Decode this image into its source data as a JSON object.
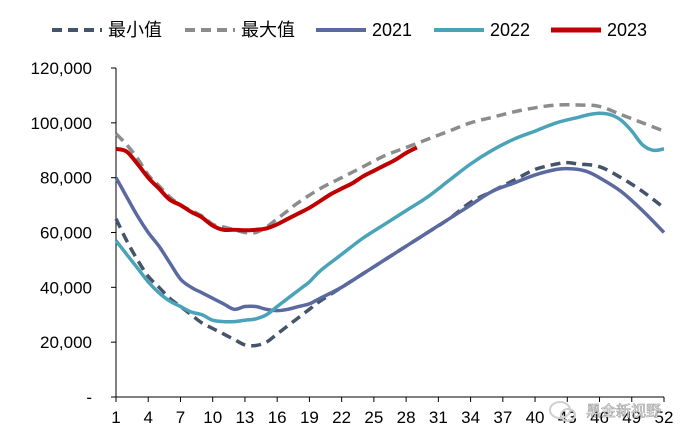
{
  "chart_data": {
    "type": "line",
    "title": "",
    "xlabel": "",
    "ylabel": "",
    "ylim": [
      0,
      120000
    ],
    "xlim": [
      1,
      52
    ],
    "y_ticks": [
      {
        "value": 0,
        "label": "-"
      },
      {
        "value": 20000,
        "label": "20,000"
      },
      {
        "value": 40000,
        "label": "40,000"
      },
      {
        "value": 60000,
        "label": "60,000"
      },
      {
        "value": 80000,
        "label": "80,000"
      },
      {
        "value": 100000,
        "label": "100,000"
      },
      {
        "value": 120000,
        "label": "120,000"
      }
    ],
    "x_ticks": [
      1,
      4,
      7,
      10,
      13,
      16,
      19,
      22,
      25,
      28,
      31,
      34,
      37,
      40,
      43,
      46,
      49,
      52
    ],
    "legend_position": "top",
    "grid": false,
    "series": [
      {
        "name": "最小值",
        "color": "#44546a",
        "dash": "dashed",
        "x": [
          1,
          2,
          3,
          4,
          5,
          6,
          7,
          8,
          9,
          10,
          11,
          12,
          13,
          14,
          15,
          16,
          17,
          18,
          19,
          20,
          22,
          24,
          26,
          28,
          30,
          32,
          34,
          36,
          38,
          40,
          42,
          43,
          44,
          46,
          48,
          50,
          52
        ],
        "values": [
          65000,
          57000,
          50000,
          44000,
          40000,
          36000,
          33000,
          30000,
          27000,
          25000,
          23000,
          21000,
          19000,
          18800,
          20000,
          23000,
          26000,
          29000,
          32000,
          35000,
          40000,
          45000,
          50000,
          55000,
          60000,
          65000,
          71000,
          75000,
          79000,
          83000,
          85000,
          85500,
          85000,
          84000,
          80000,
          75000,
          69000
        ]
      },
      {
        "name": "最大值",
        "color": "#8c8c8c",
        "dash": "dashed",
        "x": [
          1,
          2,
          3,
          4,
          5,
          6,
          7,
          8,
          9,
          10,
          11,
          12,
          13,
          14,
          15,
          16,
          17,
          18,
          20,
          22,
          24,
          26,
          28,
          30,
          32,
          34,
          36,
          38,
          40,
          42,
          44,
          46,
          48,
          50,
          52
        ],
        "values": [
          96000,
          92000,
          87000,
          81000,
          77000,
          73000,
          70000,
          68000,
          66000,
          63000,
          62000,
          61000,
          60000,
          60000,
          62000,
          65000,
          68000,
          71000,
          76000,
          80000,
          84000,
          88000,
          91000,
          94000,
          97000,
          100000,
          102000,
          104000,
          105500,
          106500,
          106500,
          106000,
          103000,
          100000,
          97000
        ]
      },
      {
        "name": "2021",
        "color": "#5a6aa0",
        "dash": "solid",
        "x": [
          1,
          2,
          3,
          4,
          5,
          6,
          7,
          8,
          9,
          10,
          11,
          12,
          13,
          14,
          15,
          16,
          17,
          18,
          19,
          20,
          22,
          24,
          26,
          28,
          30,
          32,
          34,
          36,
          38,
          40,
          42,
          43,
          44,
          45,
          46,
          48,
          50,
          52
        ],
        "values": [
          80000,
          73000,
          66000,
          60000,
          55000,
          49000,
          43000,
          40000,
          38000,
          36000,
          34000,
          32000,
          33000,
          33000,
          32000,
          31500,
          32000,
          33000,
          34000,
          36000,
          40000,
          45000,
          50000,
          55000,
          60000,
          65000,
          70000,
          75000,
          78000,
          81000,
          83000,
          83300,
          83000,
          82000,
          80000,
          75000,
          68000,
          60000
        ]
      },
      {
        "name": "2022",
        "color": "#4aa3b8",
        "dash": "solid",
        "x": [
          1,
          2,
          3,
          4,
          5,
          6,
          7,
          8,
          9,
          10,
          11,
          12,
          13,
          14,
          15,
          16,
          17,
          18,
          19,
          20,
          22,
          24,
          26,
          28,
          30,
          32,
          34,
          36,
          38,
          40,
          42,
          44,
          45,
          46,
          47,
          48,
          49,
          50,
          51,
          52
        ],
        "values": [
          57000,
          52000,
          47000,
          42000,
          38000,
          35000,
          33000,
          31000,
          30000,
          28000,
          27500,
          27500,
          28000,
          28500,
          30000,
          33000,
          36000,
          39000,
          42000,
          46000,
          52000,
          58000,
          63000,
          68000,
          73000,
          79000,
          85000,
          90000,
          94000,
          97000,
          100000,
          102000,
          103000,
          103500,
          103000,
          101000,
          97000,
          92000,
          90000,
          90500
        ]
      },
      {
        "name": "2023",
        "color": "#c00000",
        "dash": "solid",
        "x": [
          1,
          2,
          3,
          4,
          5,
          6,
          7,
          8,
          9,
          10,
          11,
          12,
          13,
          14,
          15,
          16,
          17,
          18,
          19,
          20,
          21,
          22,
          23,
          24,
          25,
          26,
          27,
          28,
          29
        ],
        "values": [
          90500,
          89500,
          85000,
          80000,
          76000,
          72000,
          70000,
          67500,
          65500,
          62500,
          61000,
          61000,
          60800,
          61000,
          61500,
          63000,
          65000,
          67000,
          69000,
          71500,
          74000,
          76000,
          78000,
          80500,
          82500,
          84500,
          86500,
          89000,
          91000
        ]
      }
    ]
  },
  "watermark": {
    "text": "黑金新视野",
    "icon": "chat-bubble-icon"
  }
}
